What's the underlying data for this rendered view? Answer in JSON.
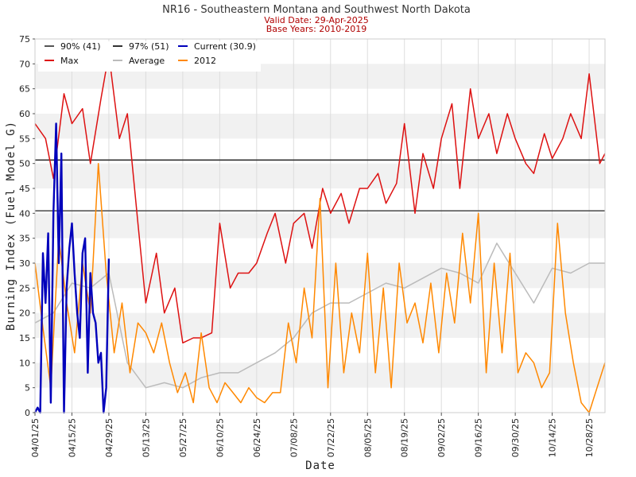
{
  "chart_data": {
    "type": "line",
    "title": "NR16 - Southeastern Montana and Southwest North Dakota",
    "subtitle_valid": "Valid Date: 29-Apr-2025",
    "subtitle_base": "Base Years: 2010-2019",
    "xlabel": "Date",
    "ylabel": "Burning Index (Fuel Model G)",
    "ylim": [
      0,
      75
    ],
    "yticks": [
      0,
      5,
      10,
      15,
      20,
      25,
      30,
      35,
      40,
      45,
      50,
      55,
      60,
      65,
      70,
      75
    ],
    "xlim": [
      "2025-04-01",
      "2025-11-03"
    ],
    "xticks": [
      "04/01/25",
      "04/15/25",
      "04/29/25",
      "05/13/25",
      "05/27/25",
      "06/10/25",
      "06/24/25",
      "07/08/25",
      "07/22/25",
      "08/05/25",
      "08/19/25",
      "09/02/25",
      "09/16/25",
      "09/30/25",
      "10/14/25",
      "10/28/25"
    ],
    "grid": "horizontal bands",
    "legend_placement": "top-left",
    "thresholds": [
      {
        "name": "90% (41)",
        "value": 40.5,
        "color": "#555555"
      },
      {
        "name": "97% (51)",
        "value": 50.7,
        "color": "#333333"
      }
    ],
    "legend": [
      {
        "name": "90% (41)",
        "color": "#555555"
      },
      {
        "name": "97% (51)",
        "color": "#333333"
      },
      {
        "name": "Current (30.9)",
        "color": "#0000bb"
      },
      {
        "name": "Max",
        "color": "#dd1111"
      },
      {
        "name": "Average",
        "color": "#bbbbbb"
      },
      {
        "name": "2012",
        "color": "#ff8800"
      }
    ],
    "series": [
      {
        "name": "Average",
        "color": "#bbbbbb",
        "x": [
          "04/01",
          "04/08",
          "04/15",
          "04/22",
          "04/29",
          "05/06",
          "05/13",
          "05/20",
          "05/27",
          "06/03",
          "06/10",
          "06/17",
          "06/24",
          "07/01",
          "07/08",
          "07/15",
          "07/22",
          "07/29",
          "08/05",
          "08/12",
          "08/19",
          "08/26",
          "09/02",
          "09/09",
          "09/16",
          "09/23",
          "09/30",
          "10/07",
          "10/14",
          "10/21",
          "10/28",
          "11/03"
        ],
        "values": [
          18,
          20,
          26,
          25,
          28,
          10,
          5,
          6,
          5,
          7,
          8,
          8,
          10,
          12,
          15,
          20,
          22,
          22,
          24,
          26,
          25,
          27,
          29,
          28,
          26,
          34,
          28,
          22,
          29,
          28,
          30,
          30
        ]
      },
      {
        "name": "Max",
        "color": "#dd1111",
        "x": [
          "04/01",
          "04/05",
          "04/08",
          "04/12",
          "04/15",
          "04/19",
          "04/22",
          "04/26",
          "04/29",
          "05/03",
          "05/06",
          "05/10",
          "05/13",
          "05/17",
          "05/20",
          "05/24",
          "05/27",
          "05/31",
          "06/03",
          "06/07",
          "06/10",
          "06/14",
          "06/17",
          "06/21",
          "06/24",
          "06/28",
          "07/01",
          "07/05",
          "07/08",
          "07/12",
          "07/15",
          "07/19",
          "07/22",
          "07/26",
          "07/29",
          "08/02",
          "08/05",
          "08/09",
          "08/12",
          "08/16",
          "08/19",
          "08/23",
          "08/26",
          "08/30",
          "09/02",
          "09/06",
          "09/09",
          "09/13",
          "09/16",
          "09/20",
          "09/23",
          "09/27",
          "09/30",
          "10/04",
          "10/07",
          "10/11",
          "10/14",
          "10/18",
          "10/21",
          "10/25",
          "10/28",
          "11/01",
          "11/03"
        ],
        "values": [
          58,
          55,
          47,
          64,
          58,
          61,
          50,
          63,
          72,
          55,
          60,
          38,
          22,
          32,
          20,
          25,
          14,
          15,
          15,
          16,
          38,
          25,
          28,
          28,
          30,
          36,
          40,
          30,
          38,
          40,
          33,
          45,
          40,
          44,
          38,
          45,
          45,
          48,
          42,
          46,
          58,
          40,
          52,
          45,
          55,
          62,
          45,
          65,
          55,
          60,
          52,
          60,
          55,
          50,
          48,
          56,
          51,
          55,
          60,
          55,
          68,
          50,
          52
        ]
      },
      {
        "name": "2012",
        "color": "#ff8800",
        "x": [
          "04/01",
          "04/04",
          "04/07",
          "04/10",
          "04/13",
          "04/16",
          "04/19",
          "04/22",
          "04/25",
          "04/28",
          "05/01",
          "05/04",
          "05/07",
          "05/10",
          "05/13",
          "05/16",
          "05/19",
          "05/22",
          "05/25",
          "05/28",
          "05/31",
          "06/03",
          "06/06",
          "06/09",
          "06/12",
          "06/15",
          "06/18",
          "06/21",
          "06/24",
          "06/27",
          "06/30",
          "07/03",
          "07/06",
          "07/09",
          "07/12",
          "07/15",
          "07/18",
          "07/21",
          "07/24",
          "07/27",
          "07/30",
          "08/02",
          "08/05",
          "08/08",
          "08/11",
          "08/14",
          "08/17",
          "08/20",
          "08/23",
          "08/26",
          "08/29",
          "09/01",
          "09/04",
          "09/07",
          "09/10",
          "09/13",
          "09/16",
          "09/19",
          "09/22",
          "09/25",
          "09/28",
          "10/01",
          "10/04",
          "10/07",
          "10/10",
          "10/13",
          "10/16",
          "10/19",
          "10/22",
          "10/25",
          "10/28",
          "10/31",
          "11/03"
        ],
        "values": [
          30,
          17,
          5,
          35,
          22,
          12,
          30,
          20,
          50,
          28,
          12,
          22,
          8,
          18,
          16,
          12,
          18,
          10,
          4,
          8,
          2,
          16,
          5,
          2,
          6,
          4,
          2,
          5,
          3,
          2,
          4,
          4,
          18,
          10,
          25,
          15,
          43,
          5,
          30,
          8,
          20,
          12,
          32,
          8,
          25,
          5,
          30,
          18,
          22,
          14,
          26,
          12,
          28,
          18,
          36,
          22,
          40,
          8,
          30,
          12,
          32,
          8,
          12,
          10,
          5,
          8,
          38,
          20,
          10,
          2,
          0,
          5,
          10
        ]
      },
      {
        "name": "Current (30.9)",
        "color": "#0000bb",
        "x": [
          "04/01",
          "04/02",
          "04/03",
          "04/04",
          "04/05",
          "04/06",
          "04/07",
          "04/08",
          "04/09",
          "04/10",
          "04/11",
          "04/12",
          "04/13",
          "04/14",
          "04/15",
          "04/16",
          "04/17",
          "04/18",
          "04/19",
          "04/20",
          "04/21",
          "04/22",
          "04/23",
          "04/24",
          "04/25",
          "04/26",
          "04/27",
          "04/28",
          "04/29"
        ],
        "values": [
          0,
          1,
          0,
          32,
          22,
          36,
          2,
          40,
          58,
          30,
          52,
          0,
          25,
          33,
          38,
          28,
          20,
          15,
          32,
          35,
          8,
          28,
          20,
          18,
          10,
          12,
          0,
          5,
          30.9
        ]
      }
    ]
  }
}
